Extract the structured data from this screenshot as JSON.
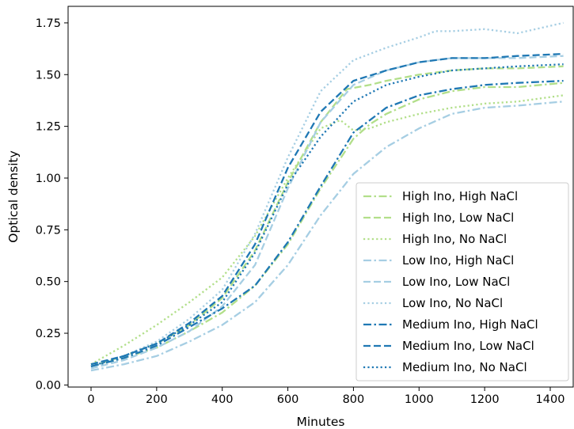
{
  "chart_data": {
    "type": "line",
    "title": "",
    "xlabel": "Minutes",
    "ylabel": "Optical density",
    "xlim": [
      -70,
      1470
    ],
    "ylim": [
      -0.01,
      1.83
    ],
    "xticks": [
      0,
      200,
      400,
      600,
      800,
      1000,
      1200,
      1400
    ],
    "yticks": [
      0.0,
      0.25,
      0.5,
      0.75,
      1.0,
      1.25,
      1.5,
      1.75
    ],
    "xtick_labels": [
      "0",
      "200",
      "400",
      "600",
      "800",
      "1000",
      "1200",
      "1400"
    ],
    "ytick_labels": [
      "0.00",
      "0.25",
      "0.50",
      "0.75",
      "1.00",
      "1.25",
      "1.50",
      "1.75"
    ],
    "grid": false,
    "legend_position": "lower-right",
    "series": [
      {
        "name": "High Ino, High NaCl",
        "color": "#b2df8a",
        "style": "dashdot",
        "x": [
          0,
          100,
          200,
          300,
          400,
          500,
          600,
          700,
          800,
          850,
          900,
          1000,
          1100,
          1200,
          1300,
          1440
        ],
        "y": [
          0.09,
          0.13,
          0.18,
          0.26,
          0.35,
          0.48,
          0.68,
          0.95,
          1.19,
          1.26,
          1.31,
          1.38,
          1.42,
          1.44,
          1.44,
          1.46
        ]
      },
      {
        "name": "High Ino, Low NaCl",
        "color": "#b2df8a",
        "style": "dashed",
        "x": [
          0,
          100,
          200,
          300,
          400,
          500,
          600,
          700,
          780,
          850,
          900,
          1000,
          1100,
          1200,
          1300,
          1440
        ],
        "y": [
          0.09,
          0.14,
          0.2,
          0.29,
          0.42,
          0.65,
          0.98,
          1.27,
          1.43,
          1.45,
          1.47,
          1.5,
          1.52,
          1.53,
          1.53,
          1.54
        ]
      },
      {
        "name": "High Ino, No NaCl",
        "color": "#b2df8a",
        "style": "dotted",
        "x": [
          0,
          100,
          200,
          300,
          400,
          500,
          600,
          700,
          760,
          800,
          850,
          900,
          1000,
          1100,
          1200,
          1300,
          1440
        ],
        "y": [
          0.1,
          0.19,
          0.29,
          0.4,
          0.52,
          0.72,
          1.0,
          1.24,
          1.28,
          1.23,
          1.24,
          1.27,
          1.31,
          1.34,
          1.36,
          1.37,
          1.4
        ]
      },
      {
        "name": "Low Ino, High NaCl",
        "color": "#a6cee3",
        "style": "dashdot",
        "x": [
          0,
          100,
          200,
          300,
          400,
          500,
          600,
          700,
          800,
          900,
          1000,
          1100,
          1200,
          1300,
          1440
        ],
        "y": [
          0.07,
          0.1,
          0.14,
          0.21,
          0.29,
          0.4,
          0.58,
          0.82,
          1.02,
          1.15,
          1.24,
          1.31,
          1.34,
          1.35,
          1.37
        ]
      },
      {
        "name": "Low Ino, Low NaCl",
        "color": "#a6cee3",
        "style": "dashed",
        "x": [
          0,
          100,
          200,
          300,
          400,
          500,
          600,
          700,
          800,
          900,
          1000,
          1100,
          1200,
          1300,
          1440
        ],
        "y": [
          0.08,
          0.12,
          0.18,
          0.26,
          0.38,
          0.58,
          0.95,
          1.27,
          1.45,
          1.52,
          1.56,
          1.58,
          1.58,
          1.58,
          1.59
        ]
      },
      {
        "name": "Low Ino, No NaCl",
        "color": "#a6cee3",
        "style": "dotted",
        "x": [
          0,
          100,
          200,
          300,
          400,
          500,
          600,
          700,
          800,
          900,
          1000,
          1050,
          1100,
          1200,
          1300,
          1440
        ],
        "y": [
          0.09,
          0.14,
          0.21,
          0.32,
          0.46,
          0.73,
          1.1,
          1.42,
          1.57,
          1.63,
          1.68,
          1.71,
          1.71,
          1.72,
          1.7,
          1.75
        ]
      },
      {
        "name": "Medium Ino, High NaCl",
        "color": "#1f78b4",
        "style": "dashdot",
        "x": [
          0,
          100,
          200,
          300,
          400,
          500,
          600,
          700,
          800,
          900,
          1000,
          1100,
          1200,
          1300,
          1440
        ],
        "y": [
          0.09,
          0.13,
          0.19,
          0.28,
          0.37,
          0.48,
          0.69,
          0.96,
          1.22,
          1.34,
          1.4,
          1.43,
          1.45,
          1.46,
          1.47
        ]
      },
      {
        "name": "Medium Ino, Low NaCl",
        "color": "#1f78b4",
        "style": "dashed",
        "x": [
          0,
          100,
          200,
          300,
          400,
          500,
          600,
          700,
          800,
          900,
          1000,
          1100,
          1200,
          1300,
          1440
        ],
        "y": [
          0.1,
          0.14,
          0.2,
          0.3,
          0.43,
          0.68,
          1.05,
          1.32,
          1.47,
          1.52,
          1.56,
          1.58,
          1.58,
          1.59,
          1.6
        ]
      },
      {
        "name": "Medium Ino, No NaCl",
        "color": "#1f78b4",
        "style": "dotted",
        "x": [
          0,
          100,
          200,
          300,
          400,
          500,
          600,
          700,
          800,
          900,
          1000,
          1100,
          1200,
          1300,
          1440
        ],
        "y": [
          0.09,
          0.14,
          0.2,
          0.29,
          0.4,
          0.64,
          0.97,
          1.2,
          1.37,
          1.45,
          1.49,
          1.52,
          1.53,
          1.54,
          1.55
        ]
      }
    ]
  }
}
